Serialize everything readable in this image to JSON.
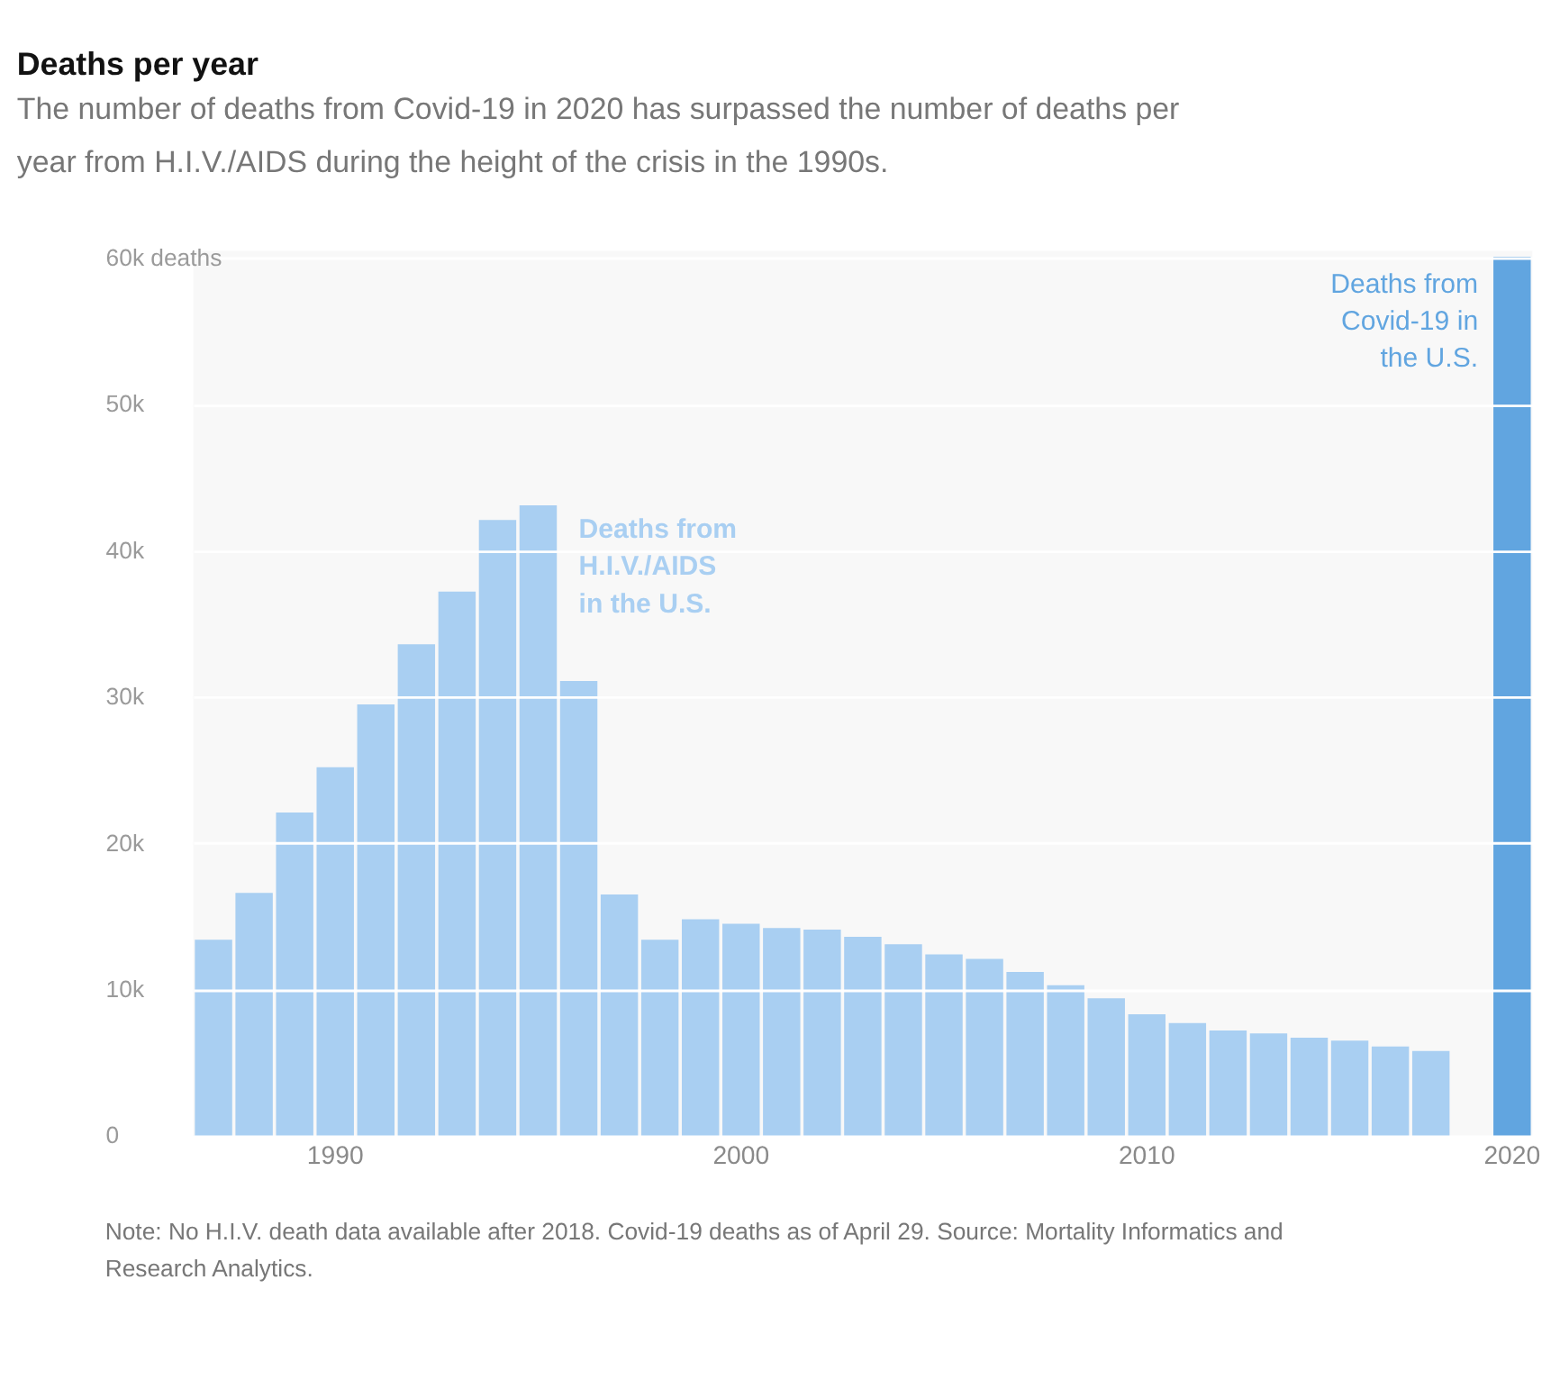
{
  "chart_data": {
    "type": "bar",
    "title": "Deaths per year",
    "subtitle": "The number of deaths from Covid-19 in 2020 has surpassed the number of deaths per year from H.I.V./AIDS during the height of the crisis in the 1990s.",
    "categories": [
      null,
      null,
      null,
      "1990",
      null,
      null,
      null,
      null,
      null,
      null,
      null,
      null,
      null,
      "2000",
      null,
      null,
      null,
      null,
      null,
      null,
      null,
      null,
      null,
      "2010",
      null,
      null,
      null,
      null,
      null,
      null,
      null,
      null,
      "2020"
    ],
    "series": [
      {
        "name": "Deaths from H.I.V./AIDS in the U.S.",
        "color": "#a9cff2",
        "values": [
          13400,
          16600,
          22100,
          25200,
          29500,
          33600,
          37200,
          42100,
          43100,
          31100,
          16500,
          13400,
          14800,
          14500,
          14200,
          14100,
          13600,
          13100,
          12400,
          12100,
          11200,
          10300,
          9400,
          8300,
          7700,
          7200,
          7000,
          6700,
          6500,
          6100,
          5800,
          null,
          null
        ]
      },
      {
        "name": "Deaths from Covid-19 in the U.S.",
        "color": "#61a5e0",
        "values": [
          null,
          null,
          null,
          null,
          null,
          null,
          null,
          null,
          null,
          null,
          null,
          null,
          null,
          null,
          null,
          null,
          null,
          null,
          null,
          null,
          null,
          null,
          null,
          null,
          null,
          null,
          null,
          null,
          null,
          null,
          null,
          null,
          60100
        ]
      }
    ],
    "ylim": [
      0,
      60500
    ],
    "yticks": [
      0,
      {
        "value": 10000,
        "label": "10k"
      },
      {
        "value": 20000,
        "label": "20k"
      },
      {
        "value": 30000,
        "label": "30k"
      },
      {
        "value": 40000,
        "label": "40k"
      },
      {
        "value": 50000,
        "label": "50k"
      },
      {
        "value": 60000,
        "label": "60k deaths"
      }
    ],
    "grid": "y",
    "legend": false,
    "annotations": [
      "Note: No H.I.V. death data available after 2018. Covid-19 deaths as of April 29. Source: Mortality Informatics and Research Analytics."
    ]
  }
}
